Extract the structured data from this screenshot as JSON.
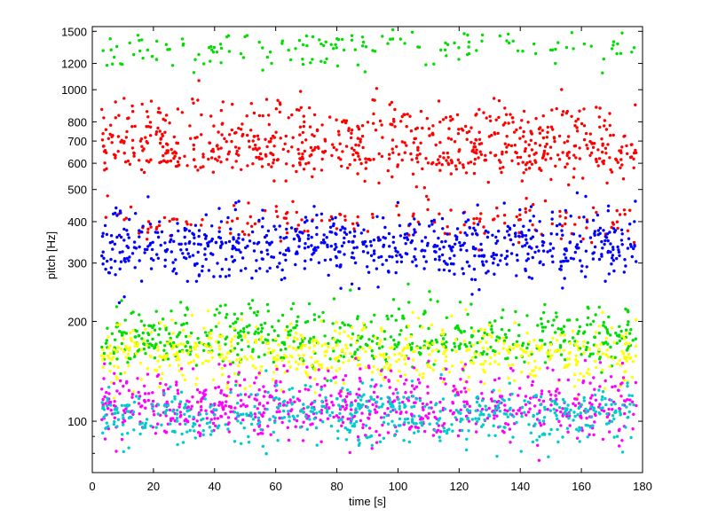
{
  "chart_data": {
    "type": "scatter",
    "title": "",
    "xlabel": "time [s]",
    "ylabel": "pitch [Hz]",
    "xlim": [
      0,
      180
    ],
    "ylim": [
      70,
      1550
    ],
    "yscale": "log",
    "grid": false,
    "legend": "none",
    "x_ticks": [
      0,
      20,
      40,
      60,
      80,
      100,
      120,
      140,
      160,
      180
    ],
    "y_ticks": [
      100,
      200,
      300,
      400,
      500,
      600,
      700,
      800,
      1000,
      1200,
      1500
    ],
    "x_tick_labels": [
      "0",
      "20",
      "40",
      "60",
      "80",
      "100",
      "120",
      "140",
      "160",
      "180"
    ],
    "y_tick_labels": [
      "100",
      "200",
      "300",
      "400",
      "500",
      "600",
      "700",
      "800",
      "1000",
      "1200",
      "1500"
    ],
    "x_range_data": [
      3,
      178
    ],
    "series": [
      {
        "color": "#ff0000",
        "bands": [
          {
            "center": 670,
            "spread": 0.07
          },
          {
            "center": 620,
            "spread": 0.05
          },
          {
            "center": 820,
            "spread": 0.06
          },
          {
            "center": 400,
            "spread": 0.05
          }
        ]
      },
      {
        "color": "#0000ff",
        "bands": [
          {
            "center": 335,
            "spread": 0.06
          },
          {
            "center": 300,
            "spread": 0.06
          },
          {
            "center": 380,
            "spread": 0.07
          }
        ]
      },
      {
        "color": "#00dd00",
        "bands": [
          {
            "center": 170,
            "spread": 0.06
          },
          {
            "center": 200,
            "spread": 0.06
          },
          {
            "center": 1350,
            "spread": 0.05
          }
        ]
      },
      {
        "color": "#ffff00",
        "bands": [
          {
            "center": 165,
            "spread": 0.07
          },
          {
            "center": 145,
            "spread": 0.07
          }
        ]
      },
      {
        "color": "#ff00ff",
        "bands": [
          {
            "center": 110,
            "spread": 0.05
          },
          {
            "center": 98,
            "spread": 0.06
          },
          {
            "center": 130,
            "spread": 0.06
          }
        ]
      },
      {
        "color": "#00cccc",
        "bands": [
          {
            "center": 108,
            "spread": 0.06
          },
          {
            "center": 95,
            "spread": 0.06
          }
        ]
      }
    ]
  }
}
